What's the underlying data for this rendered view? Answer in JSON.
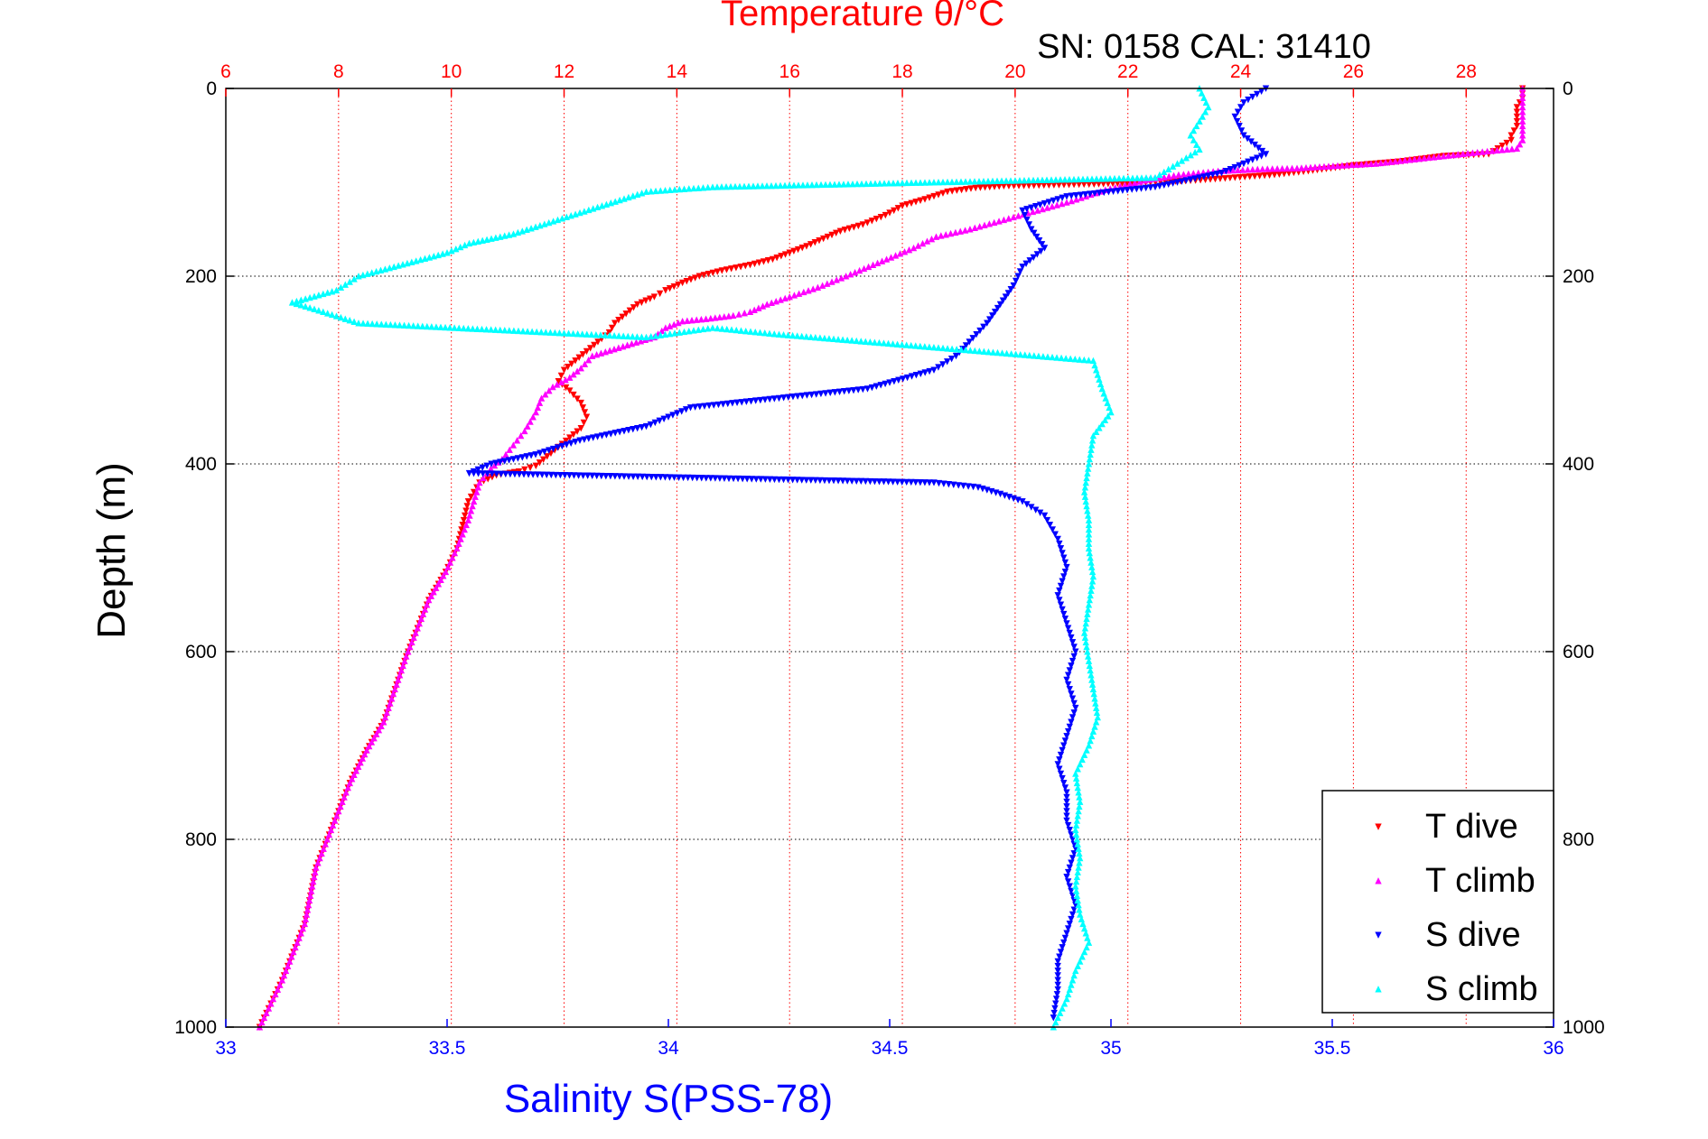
{
  "chart_data": {
    "type": "scatter",
    "title": "Temperature θ/°C",
    "subtitle": "SN: 0158  CAL: 31410",
    "xlabel": "Salinity S(PSS-78)",
    "ylabel": "Depth (m)",
    "x_top": {
      "label": "Temperature θ/°C",
      "range": [
        6,
        29.55
      ],
      "ticks": [
        6,
        8,
        10,
        12,
        14,
        16,
        18,
        20,
        22,
        24,
        26,
        28
      ],
      "color": "#ff0000"
    },
    "x_bottom": {
      "label": "Salinity S(PSS-78)",
      "range": [
        33,
        36
      ],
      "ticks": [
        33,
        33.5,
        34,
        34.5,
        35,
        35.5,
        36
      ],
      "tick_labels": [
        "33",
        "33.5",
        "34",
        "34.5",
        "35",
        "35.5",
        "36"
      ],
      "color": "#0000ff"
    },
    "y": {
      "range": [
        0,
        1000
      ],
      "inverted": true,
      "ticks": [
        0,
        200,
        400,
        600,
        800,
        1000
      ]
    },
    "grid": true,
    "legend": {
      "position": "bottom-right",
      "entries": [
        "T dive",
        "T climb",
        "S dive",
        "S climb"
      ]
    },
    "series": [
      {
        "name": "T dive",
        "axis": "top",
        "color": "#ff0000",
        "marker": "triangle-down",
        "points": [
          [
            29.0,
            0
          ],
          [
            29.0,
            10
          ],
          [
            28.9,
            20
          ],
          [
            28.9,
            30
          ],
          [
            28.9,
            40
          ],
          [
            28.8,
            50
          ],
          [
            28.8,
            55
          ],
          [
            28.4,
            70
          ],
          [
            27.6,
            72
          ],
          [
            26.8,
            78
          ],
          [
            26.0,
            82
          ],
          [
            25.2,
            88
          ],
          [
            24.6,
            92
          ],
          [
            23.9,
            95
          ],
          [
            23.2,
            98
          ],
          [
            22.4,
            100
          ],
          [
            21.4,
            102
          ],
          [
            20.6,
            103
          ],
          [
            19.8,
            104
          ],
          [
            19.3,
            106
          ],
          [
            18.8,
            110
          ],
          [
            18.4,
            118
          ],
          [
            18.0,
            125
          ],
          [
            17.7,
            135
          ],
          [
            17.3,
            145
          ],
          [
            16.9,
            152
          ],
          [
            16.6,
            160
          ],
          [
            16.3,
            168
          ],
          [
            16.0,
            175
          ],
          [
            15.7,
            182
          ],
          [
            15.3,
            188
          ],
          [
            14.8,
            194
          ],
          [
            14.4,
            200
          ],
          [
            14.1,
            207
          ],
          [
            13.8,
            215
          ],
          [
            13.6,
            222
          ],
          [
            13.3,
            230
          ],
          [
            13.1,
            240
          ],
          [
            12.9,
            250
          ],
          [
            12.8,
            260
          ],
          [
            12.6,
            270
          ],
          [
            12.4,
            280
          ],
          [
            12.2,
            290
          ],
          [
            12.0,
            300
          ],
          [
            11.9,
            312
          ],
          [
            12.1,
            322
          ],
          [
            12.3,
            335
          ],
          [
            12.4,
            350
          ],
          [
            12.3,
            362
          ],
          [
            12.1,
            372
          ],
          [
            11.9,
            382
          ],
          [
            11.7,
            392
          ],
          [
            11.5,
            402
          ],
          [
            11.2,
            408
          ],
          [
            10.8,
            412
          ],
          [
            10.5,
            420
          ],
          [
            10.3,
            440
          ],
          [
            10.2,
            465
          ],
          [
            10.1,
            490
          ],
          [
            9.9,
            515
          ],
          [
            9.6,
            545
          ],
          [
            9.4,
            575
          ],
          [
            9.2,
            605
          ],
          [
            9.0,
            640
          ],
          [
            8.8,
            675
          ],
          [
            8.5,
            705
          ],
          [
            8.2,
            740
          ],
          [
            8.0,
            770
          ],
          [
            7.8,
            800
          ],
          [
            7.6,
            830
          ],
          [
            7.5,
            860
          ],
          [
            7.4,
            890
          ],
          [
            7.2,
            920
          ],
          [
            7.0,
            950
          ],
          [
            6.8,
            975
          ],
          [
            6.6,
            1000
          ]
        ]
      },
      {
        "name": "T climb",
        "axis": "top",
        "color": "#ff00ff",
        "marker": "triangle-up",
        "points": [
          [
            6.6,
            1000
          ],
          [
            6.8,
            975
          ],
          [
            7.0,
            950
          ],
          [
            7.2,
            920
          ],
          [
            7.4,
            890
          ],
          [
            7.5,
            860
          ],
          [
            7.6,
            830
          ],
          [
            7.8,
            800
          ],
          [
            8.0,
            770
          ],
          [
            8.2,
            740
          ],
          [
            8.5,
            705
          ],
          [
            8.8,
            675
          ],
          [
            9.0,
            640
          ],
          [
            9.2,
            605
          ],
          [
            9.4,
            575
          ],
          [
            9.6,
            545
          ],
          [
            9.9,
            515
          ],
          [
            10.1,
            490
          ],
          [
            10.3,
            460
          ],
          [
            10.4,
            440
          ],
          [
            10.5,
            420
          ],
          [
            10.7,
            405
          ],
          [
            10.9,
            395
          ],
          [
            11.1,
            380
          ],
          [
            11.3,
            365
          ],
          [
            11.5,
            345
          ],
          [
            11.6,
            330
          ],
          [
            11.8,
            318
          ],
          [
            12.1,
            308
          ],
          [
            12.3,
            298
          ],
          [
            12.5,
            285
          ],
          [
            13.2,
            272
          ],
          [
            13.6,
            265
          ],
          [
            13.8,
            255
          ],
          [
            14.1,
            248
          ],
          [
            14.6,
            245
          ],
          [
            15.0,
            242
          ],
          [
            15.3,
            238
          ],
          [
            15.6,
            230
          ],
          [
            16.0,
            222
          ],
          [
            16.5,
            212
          ],
          [
            17.0,
            200
          ],
          [
            17.4,
            190
          ],
          [
            17.8,
            180
          ],
          [
            18.2,
            170
          ],
          [
            18.6,
            158
          ],
          [
            19.2,
            150
          ],
          [
            19.8,
            140
          ],
          [
            20.4,
            130
          ],
          [
            21.0,
            120
          ],
          [
            21.6,
            108
          ],
          [
            22.3,
            98
          ],
          [
            22.9,
            92
          ],
          [
            23.6,
            88
          ],
          [
            24.3,
            86
          ],
          [
            25.0,
            85
          ],
          [
            25.8,
            82
          ],
          [
            26.4,
            80
          ],
          [
            27.0,
            76
          ],
          [
            27.6,
            72
          ],
          [
            28.2,
            68
          ],
          [
            28.9,
            64
          ],
          [
            29.0,
            55
          ],
          [
            29.0,
            40
          ],
          [
            29.0,
            25
          ],
          [
            29.0,
            10
          ],
          [
            29.0,
            0
          ]
        ]
      },
      {
        "name": "S dive",
        "axis": "bottom",
        "color": "#0000ff",
        "marker": "triangle-down",
        "points": [
          [
            35.35,
            0
          ],
          [
            35.3,
            15
          ],
          [
            35.28,
            30
          ],
          [
            35.3,
            50
          ],
          [
            35.35,
            70
          ],
          [
            35.25,
            90
          ],
          [
            35.1,
            105
          ],
          [
            34.9,
            115
          ],
          [
            34.8,
            130
          ],
          [
            34.82,
            150
          ],
          [
            34.85,
            170
          ],
          [
            34.8,
            190
          ],
          [
            34.78,
            210
          ],
          [
            34.75,
            230
          ],
          [
            34.72,
            250
          ],
          [
            34.68,
            270
          ],
          [
            34.65,
            285
          ],
          [
            34.6,
            300
          ],
          [
            34.45,
            320
          ],
          [
            34.25,
            330
          ],
          [
            34.05,
            340
          ],
          [
            33.95,
            360
          ],
          [
            33.8,
            375
          ],
          [
            33.7,
            390
          ],
          [
            33.6,
            400
          ],
          [
            33.55,
            410
          ],
          [
            34.6,
            420
          ],
          [
            34.7,
            425
          ],
          [
            34.75,
            432
          ],
          [
            34.8,
            440
          ],
          [
            34.85,
            455
          ],
          [
            34.88,
            480
          ],
          [
            34.9,
            510
          ],
          [
            34.88,
            540
          ],
          [
            34.9,
            570
          ],
          [
            34.92,
            600
          ],
          [
            34.9,
            630
          ],
          [
            34.92,
            660
          ],
          [
            34.9,
            690
          ],
          [
            34.88,
            720
          ],
          [
            34.9,
            750
          ],
          [
            34.9,
            780
          ],
          [
            34.92,
            810
          ],
          [
            34.9,
            840
          ],
          [
            34.92,
            870
          ],
          [
            34.9,
            900
          ],
          [
            34.88,
            930
          ],
          [
            34.88,
            960
          ],
          [
            34.87,
            990
          ]
        ]
      },
      {
        "name": "S climb",
        "axis": "bottom",
        "color": "#00ffff",
        "marker": "triangle-up",
        "points": [
          [
            34.87,
            1000
          ],
          [
            34.9,
            970
          ],
          [
            34.92,
            940
          ],
          [
            34.95,
            910
          ],
          [
            34.93,
            880
          ],
          [
            34.92,
            850
          ],
          [
            34.93,
            820
          ],
          [
            34.92,
            790
          ],
          [
            34.93,
            760
          ],
          [
            34.92,
            730
          ],
          [
            34.95,
            700
          ],
          [
            34.97,
            670
          ],
          [
            34.96,
            640
          ],
          [
            34.95,
            610
          ],
          [
            34.94,
            580
          ],
          [
            34.95,
            550
          ],
          [
            34.96,
            520
          ],
          [
            34.95,
            490
          ],
          [
            34.95,
            460
          ],
          [
            34.94,
            430
          ],
          [
            34.95,
            400
          ],
          [
            34.96,
            370
          ],
          [
            35.0,
            345
          ],
          [
            34.98,
            320
          ],
          [
            34.96,
            290
          ],
          [
            34.25,
            262
          ],
          [
            34.1,
            255
          ],
          [
            33.95,
            265
          ],
          [
            33.3,
            250
          ],
          [
            33.2,
            235
          ],
          [
            33.15,
            228
          ],
          [
            33.25,
            215
          ],
          [
            33.3,
            200
          ],
          [
            33.42,
            185
          ],
          [
            33.5,
            175
          ],
          [
            33.55,
            165
          ],
          [
            33.65,
            155
          ],
          [
            33.75,
            140
          ],
          [
            33.85,
            125
          ],
          [
            33.95,
            110
          ],
          [
            34.1,
            105
          ],
          [
            35.1,
            95
          ],
          [
            35.15,
            80
          ],
          [
            35.2,
            65
          ],
          [
            35.18,
            50
          ],
          [
            35.2,
            35
          ],
          [
            35.22,
            20
          ],
          [
            35.2,
            0
          ]
        ]
      }
    ]
  }
}
